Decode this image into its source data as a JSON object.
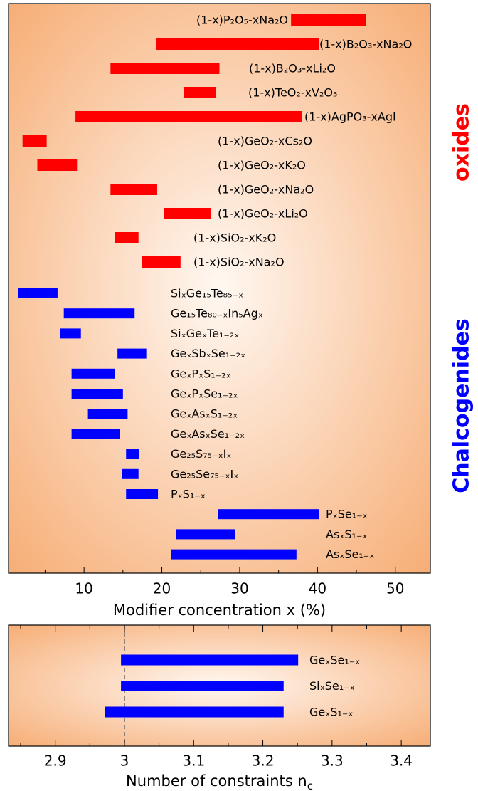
{
  "chart_data": [
    {
      "type": "range_bar",
      "xlabel": "Modifier concentration x (%)",
      "xlim": [
        0.3,
        54.5
      ],
      "xticks": [
        10,
        20,
        30,
        40,
        50
      ],
      "xminorticks": [
        5,
        15,
        25,
        35,
        45
      ],
      "groups": [
        {
          "label": "oxides",
          "color": "#ff0000",
          "categories": [
            "(1-x)P₂O₅-xNa₂O",
            "(1-x)B₂O₃-xNa₂O",
            "(1-x)B₂O₃-xLi₂O",
            "(1-x)TeO₂-xV₂O₅",
            "(1-x)AgPO₃-xAgI",
            "(1-x)GeO₂-xCs₂O",
            "(1-x)GeO₂-xK₂O",
            "(1-x)GeO₂-xNa₂O",
            "(1-x)GeO₂-xLi₂O",
            "(1-x)SiO₂-xK₂O",
            "(1-x)SiO₂-xNa₂O"
          ],
          "ranges": [
            [
              36.6,
              46.2
            ],
            [
              19.3,
              40.2
            ],
            [
              13.4,
              27.4
            ],
            [
              22.8,
              26.9
            ],
            [
              8.9,
              38.0
            ],
            [
              2.1,
              5.2
            ],
            [
              4.0,
              9.1
            ],
            [
              13.4,
              19.4
            ],
            [
              20.3,
              26.3
            ],
            [
              14.0,
              17.0
            ],
            [
              17.4,
              22.4
            ]
          ]
        },
        {
          "label": "Chalcogenides",
          "color": "#0000ff",
          "categories": [
            "SiₓGe₁₅Te₈₅₋ₓ",
            "Ge₁₅Te₈₀₋ₓIn₅Agₓ",
            "SiₓGeₓTe₁₋₂ₓ",
            "GeₓSbₓSe₁₋₂ₓ",
            "GeₓPₓS₁₋₂ₓ",
            "GeₓPₓSe₁₋₂ₓ",
            "GeₓAsₓS₁₋₂ₓ",
            "GeₓAsₓSe₁₋₂ₓ",
            "Ge₂₅S₇₅₋ₓIₓ",
            "Ge₂₅Se₇₅₋ₓIₓ",
            "PₓS₁₋ₓ",
            "PₓSe₁₋ₓ",
            "AsₓS₁₋ₓ",
            "AsₓSe₁₋ₓ"
          ],
          "ranges": [
            [
              1.5,
              6.6
            ],
            [
              7.4,
              16.5
            ],
            [
              6.9,
              9.6
            ],
            [
              14.3,
              18.0
            ],
            [
              8.4,
              14.0
            ],
            [
              8.4,
              15.0
            ],
            [
              10.5,
              15.6
            ],
            [
              8.4,
              14.6
            ],
            [
              15.4,
              17.1
            ],
            [
              14.9,
              17.0
            ],
            [
              15.4,
              19.5
            ],
            [
              27.2,
              40.2
            ],
            [
              21.8,
              29.4
            ],
            [
              21.2,
              37.3
            ]
          ]
        }
      ]
    },
    {
      "type": "range_bar",
      "xlabel": "Number of constraints n",
      "xlabel_subscript": "c",
      "xlim": [
        2.8325,
        3.442
      ],
      "xticks": [
        2.9,
        3,
        3.1,
        3.2,
        3.3,
        3.4
      ],
      "xminorticks": [
        2.85,
        2.95,
        3.05,
        3.15,
        3.25,
        3.35
      ],
      "reference_line": 3,
      "groups": [
        {
          "color": "#0000ff",
          "categories": [
            "GeₓSe₁₋ₓ",
            "SiₓSe₁₋ₓ",
            "GeₓS₁₋ₓ"
          ],
          "ranges": [
            [
              2.995,
              3.251
            ],
            [
              2.995,
              3.23
            ],
            [
              2.972,
              3.23
            ]
          ]
        }
      ]
    }
  ]
}
